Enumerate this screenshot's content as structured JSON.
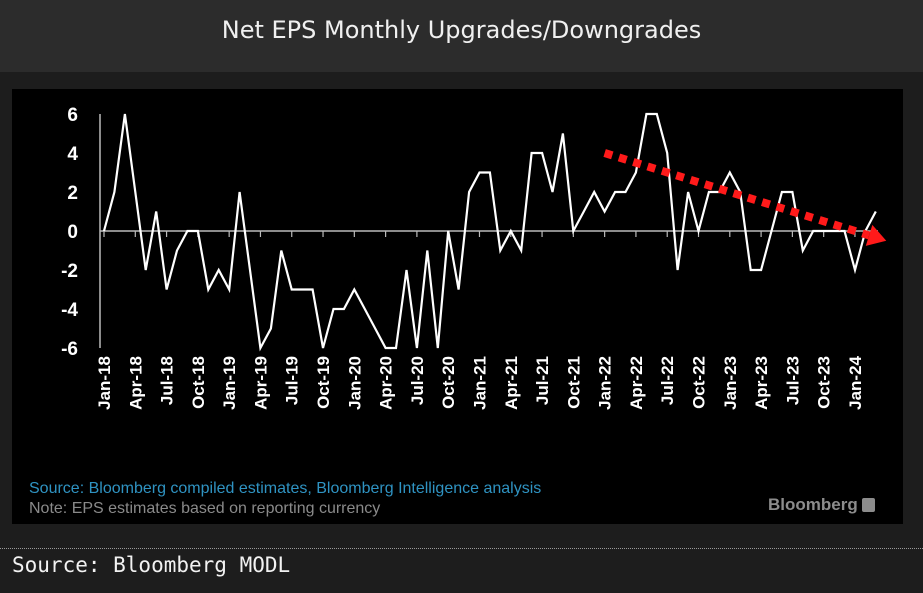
{
  "header": {
    "title": "Net EPS Monthly Upgrades/Downgrades"
  },
  "chart_data": {
    "type": "line",
    "title": "Net EPS Monthly Upgrades/Downgrades",
    "xlabel": "",
    "ylabel": "",
    "ylim": [
      -6,
      6
    ],
    "y_ticks": [
      "6",
      "4",
      "2",
      "0",
      "-2",
      "-4",
      "-6"
    ],
    "x_ticks": [
      "Jan-18",
      "Apr-18",
      "Jul-18",
      "Oct-18",
      "Jan-19",
      "Apr-19",
      "Jul-19",
      "Oct-19",
      "Jan-20",
      "Apr-20",
      "Jul-20",
      "Oct-20",
      "Jan-21",
      "Apr-21",
      "Jul-21",
      "Oct-21",
      "Jan-22",
      "Apr-22",
      "Jul-22",
      "Oct-22",
      "Jan-23",
      "Apr-23",
      "Jul-23",
      "Oct-23",
      "Jan-24"
    ],
    "x_start": "Jan-18",
    "frequency": "monthly",
    "grid": false,
    "line_color": "#ffffff",
    "values": [
      0,
      2,
      6,
      2,
      -2,
      1,
      -3,
      -1,
      0,
      0,
      -3,
      -2,
      -3,
      2,
      -2,
      -6,
      -5,
      -1,
      -3,
      -3,
      -3,
      -6,
      -4,
      -4,
      -3,
      -4,
      -5,
      -6,
      -6,
      -2,
      -6,
      -1,
      -6,
      0,
      -3,
      2,
      3,
      3,
      -1,
      0,
      -1,
      4,
      4,
      2,
      5,
      0,
      1,
      2,
      1,
      2,
      2,
      3,
      6,
      6,
      4,
      -2,
      2,
      0,
      2,
      2,
      3,
      2,
      -2,
      -2,
      0,
      2,
      2,
      -1,
      0,
      0,
      0,
      0,
      -2,
      0,
      1
    ],
    "annotations": [
      {
        "type": "dotted-trend-arrow",
        "color": "#ff1a1a",
        "from": {
          "x": "Jan-22",
          "y": 4
        },
        "to": {
          "x": "Apr-24",
          "y": -0.5
        }
      }
    ]
  },
  "footnotes": {
    "source": "Source: Bloomberg compiled estimates, Bloomberg Intelligence analysis",
    "note": "Note: EPS estimates based on reporting currency",
    "source_color": "#2f93c2",
    "logo": "Bloomberg"
  },
  "footer": {
    "source": "Source: Bloomberg MODL"
  }
}
